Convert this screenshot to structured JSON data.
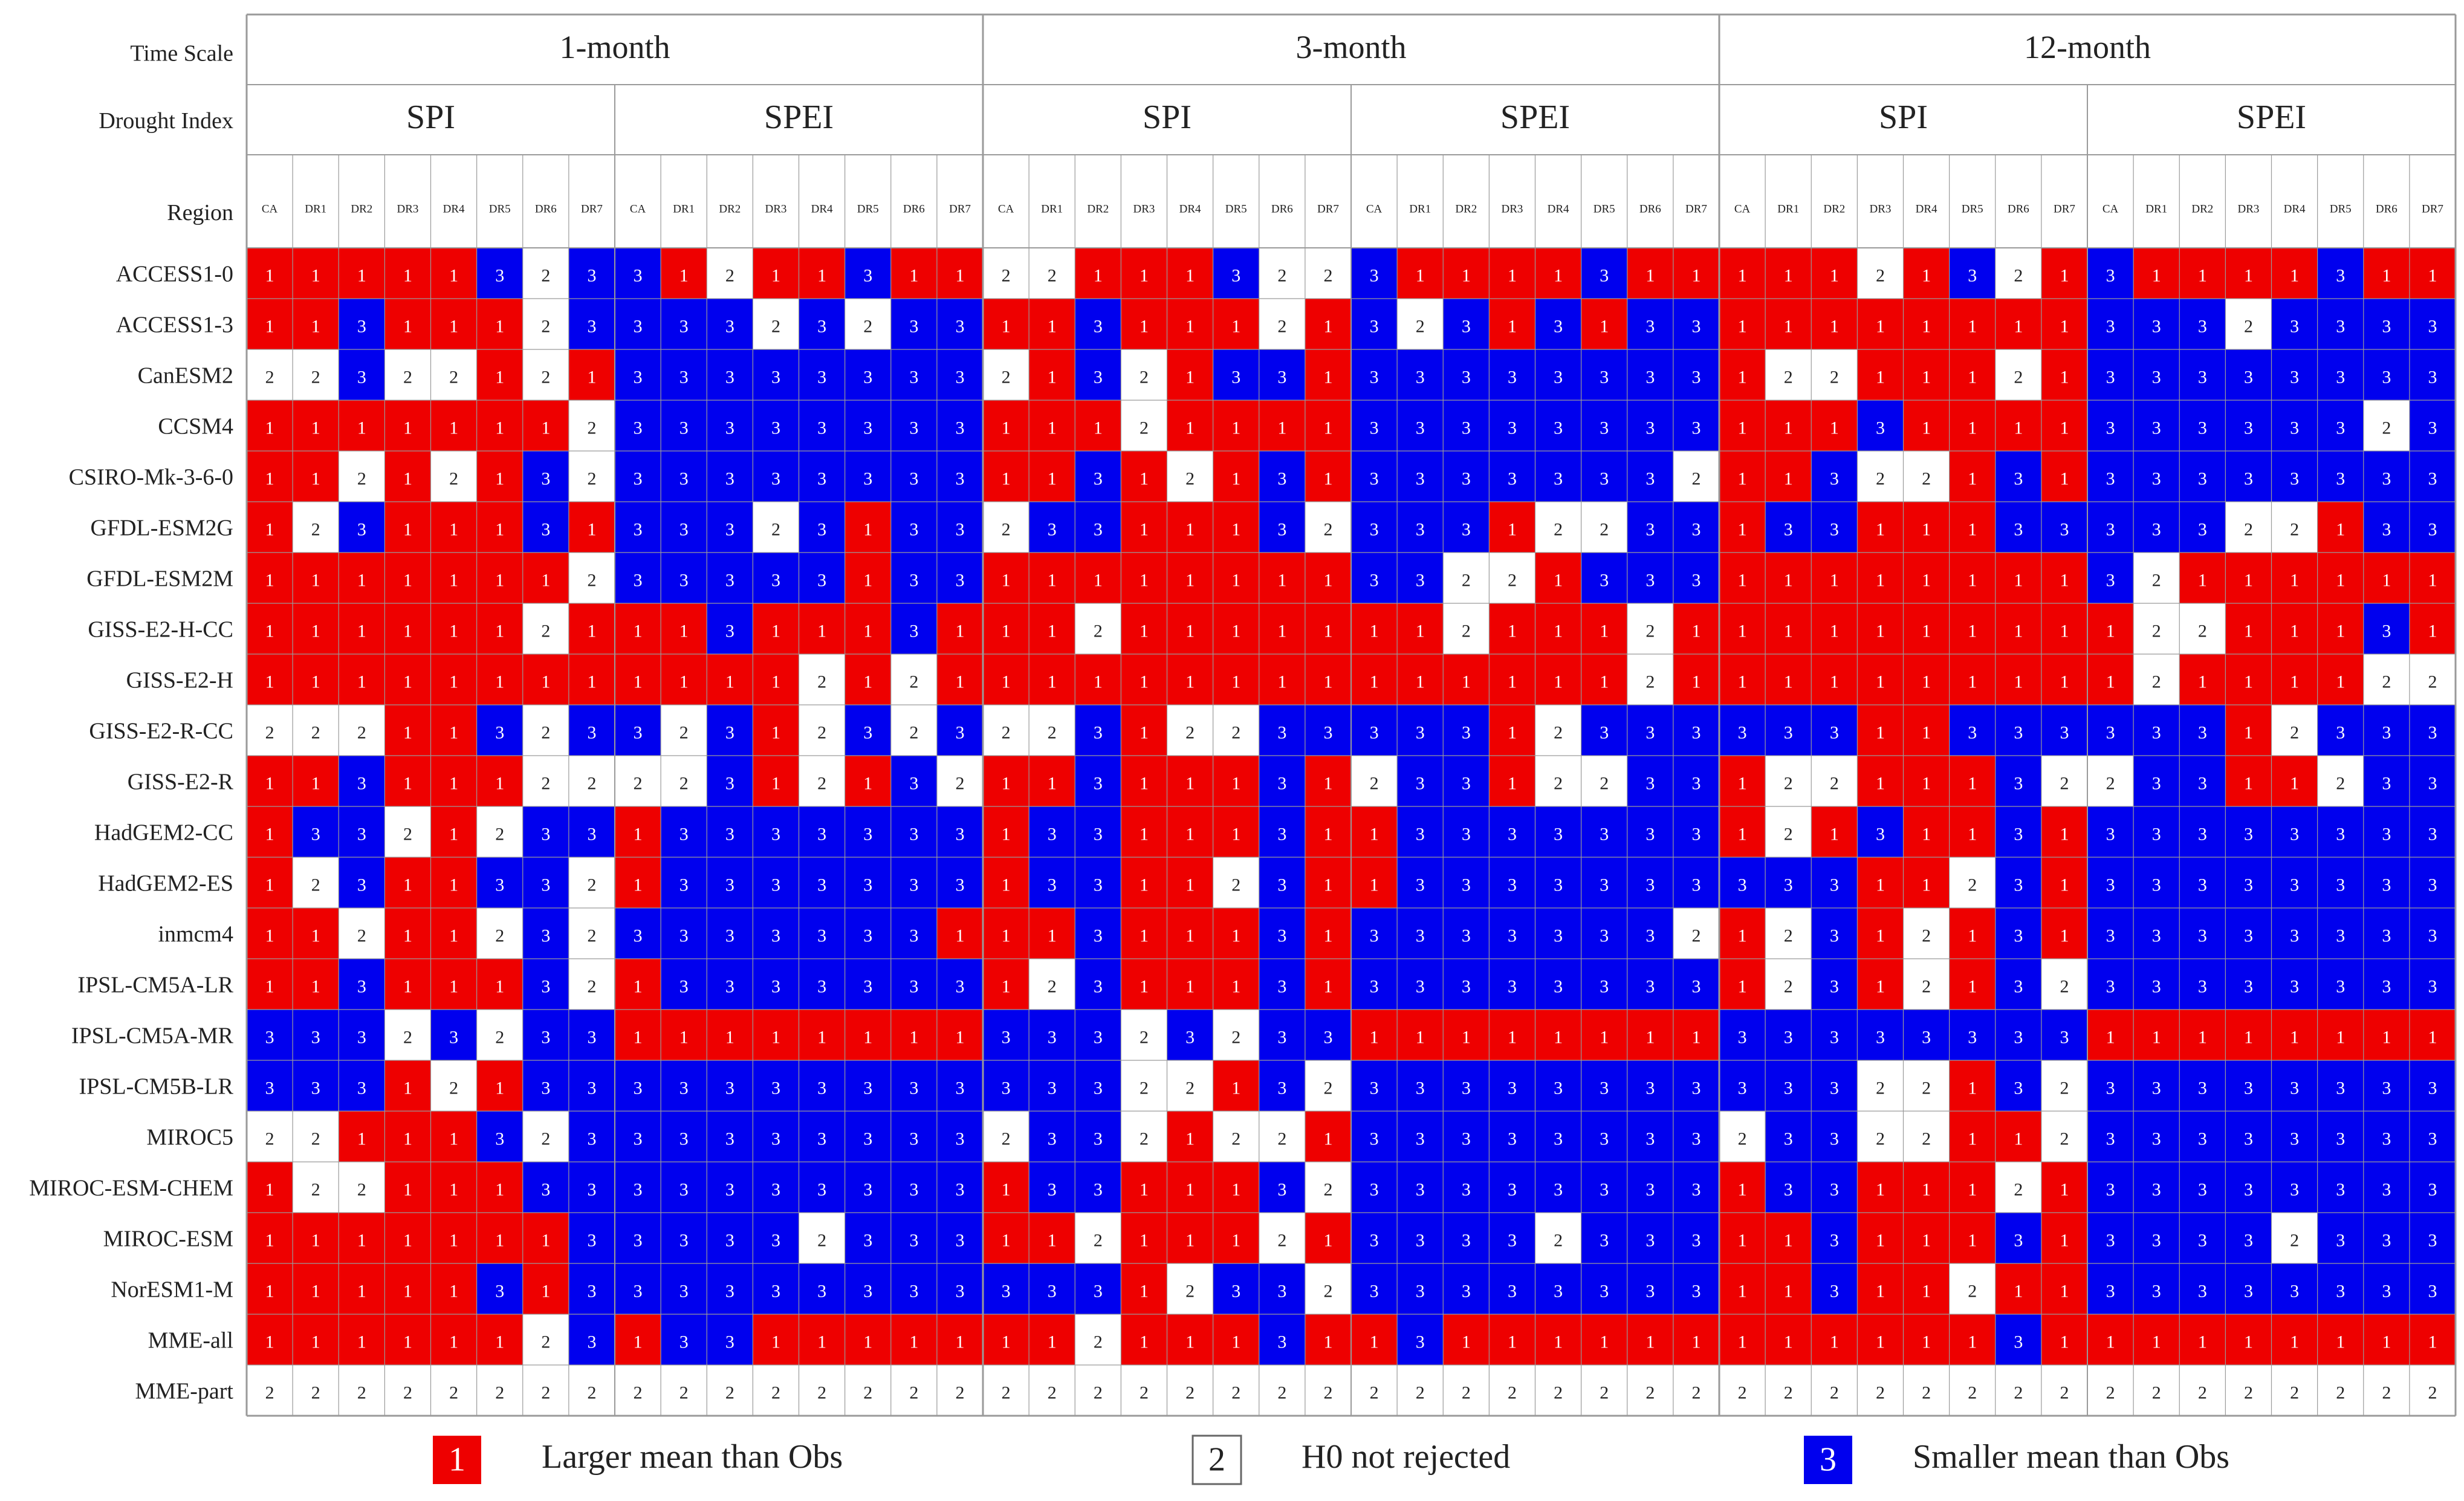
{
  "chart_data": {
    "type": "heatmap",
    "row_header_labels": {
      "time_scale": "Time Scale",
      "drought_index": "Drought Index",
      "region": "Region"
    },
    "time_scales": [
      "1-month",
      "3-month",
      "12-month"
    ],
    "drought_indices": [
      "SPI",
      "SPEI"
    ],
    "regions": [
      "CA",
      "DR1",
      "DR2",
      "DR3",
      "DR4",
      "DR5",
      "DR6",
      "DR7"
    ],
    "colors": {
      "1": "#ee0000",
      "2": "#ffffff",
      "3": "#0000ee"
    },
    "legend": [
      {
        "code": "1",
        "label": "Larger mean than Obs"
      },
      {
        "code": "2",
        "label": "H0 not rejected"
      },
      {
        "code": "3",
        "label": "Smaller mean than Obs"
      }
    ],
    "models": [
      "ACCESS1-0",
      "ACCESS1-3",
      "CanESM2",
      "CCSM4",
      "CSIRO-Mk-3-6-0",
      "GFDL-ESM2G",
      "GFDL-ESM2M",
      "GISS-E2-H-CC",
      "GISS-E2-H",
      "GISS-E2-R-CC",
      "GISS-E2-R",
      "HadGEM2-CC",
      "HadGEM2-ES",
      "inmcm4",
      "IPSL-CM5A-LR",
      "IPSL-CM5A-MR",
      "IPSL-CM5B-LR",
      "MIROC5",
      "MIROC-ESM-CHEM",
      "MIROC-ESM",
      "NorESM1-M",
      "MME-all",
      "MME-part"
    ],
    "values": [
      "11111323 31211311 22111322 31111311 11121321 31111311",
      "11311123 33323233 11311121 32313133 11111111 33323333",
      "22322121 33333333 21321331 33333333 12211121 33333333",
      "11111112 33333333 11121111 33333333 11131111 33333323",
      "11212132 33333333 11312131 33333332 11322131 33333333",
      "12311131 33323133 23311132 33312233 13311133 33322133",
      "11111112 33333133 11111111 33221333 11111111 32111111",
      "11111121 11311131 11211111 11211121 11111111 12211131",
      "11111111 11112121 11111111 11111121 11111111 12111122",
      "22211323 32312323 22312233 33312333 33311333 33312333",
      "11311122 22312132 11311131 23312233 12211132 23311233",
      "13321233 13333333 13311131 13333333 12131131 33333333",
      "12311332 13333333 13311231 13333333 33311231 33333333",
      "11211232 33333331 11311131 33333332 12312131 33333333",
      "11311132 13333333 12311131 33333333 12312132 33333333",
      "33323233 11111111 33323233 11111111 33333333 11111111",
      "33312133 33333333 33322132 33333333 33322132 33333333",
      "22111323 33333333 23321221 33333333 23322112 33333333",
      "12211133 33333333 13311132 33333333 13311121 33333333",
      "11111113 33332333 11211121 33332333 11311131 33332333",
      "11111313 33333333 33312332 33333333 11311211 33333333",
      "11111123 13311111 11211131 13111111 11111131 11111111",
      "22222222 22222222 22222222 22222222 22222222 22222222"
    ]
  }
}
